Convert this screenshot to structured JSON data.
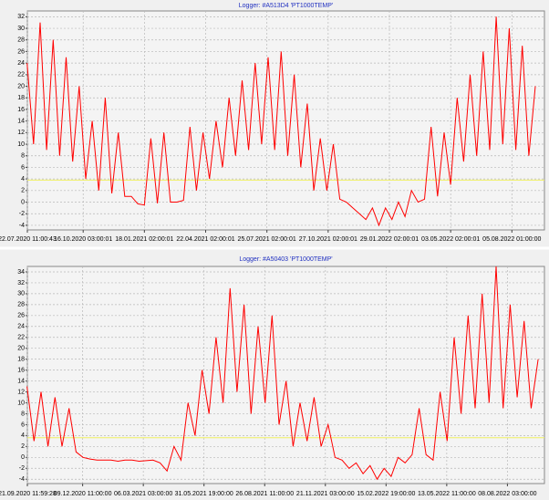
{
  "chart_data": [
    {
      "type": "line",
      "title": "Logger: #A513D4 'PT1000TEMP'",
      "color": "#ff0000",
      "grid": true,
      "threshold": 3.8,
      "threshold_color": "#f0f060",
      "xlim": [
        "22.07.2020 11:00:43",
        "24.09.2022"
      ],
      "xticks": [
        "22.07.2020 11:00:43",
        "16.10.2020 03:00:01",
        "18.01.2021 02:00:01",
        "22.04.2021 02:00:01",
        "25.07.2021 02:00:01",
        "27.10.2021 02:00:01",
        "29.01.2022 02:00:01",
        "03.05.2022 02:00:01",
        "05.08.2022 01:00:00"
      ],
      "ylim": [
        -4.8,
        33
      ],
      "yticks": [
        -4,
        -2,
        0,
        2,
        4,
        6,
        8,
        10,
        12,
        14,
        16,
        18,
        20,
        22,
        24,
        26,
        28,
        30,
        32
      ],
      "x": [
        "22.07.2020",
        "01.08.2020",
        "11.08.2020",
        "21.08.2020",
        "31.08.2020",
        "10.09.2020",
        "20.09.2020",
        "30.09.2020",
        "10.10.2020",
        "20.10.2020",
        "30.10.2020",
        "09.11.2020",
        "19.11.2020",
        "29.11.2020",
        "09.12.2020",
        "19.12.2020",
        "29.12.2020",
        "08.01.2021",
        "18.01.2021",
        "28.01.2021",
        "07.02.2021",
        "17.02.2021",
        "27.02.2021",
        "09.03.2021",
        "19.03.2021",
        "29.03.2021",
        "08.04.2021",
        "18.04.2021",
        "28.04.2021",
        "08.05.2021",
        "18.05.2021",
        "28.05.2021",
        "07.06.2021",
        "17.06.2021",
        "27.06.2021",
        "07.07.2021",
        "17.07.2021",
        "27.07.2021",
        "06.08.2021",
        "16.08.2021",
        "26.08.2021",
        "05.09.2021",
        "15.09.2021",
        "25.09.2021",
        "05.10.2021",
        "15.10.2021",
        "25.10.2021",
        "04.11.2021",
        "14.11.2021",
        "24.11.2021",
        "04.12.2021",
        "14.12.2021",
        "24.12.2021",
        "03.01.2022",
        "13.01.2022",
        "23.01.2022",
        "02.02.2022",
        "12.02.2022",
        "22.02.2022",
        "04.03.2022",
        "14.03.2022",
        "24.03.2022",
        "03.04.2022",
        "13.04.2022",
        "23.04.2022",
        "03.05.2022",
        "13.05.2022",
        "23.05.2022",
        "02.06.2022",
        "12.06.2022",
        "22.06.2022",
        "02.07.2022",
        "12.07.2022",
        "22.07.2022",
        "01.08.2022",
        "11.08.2022",
        "21.08.2022",
        "31.08.2022",
        "10.09.2022"
      ],
      "values": [
        24,
        10,
        31,
        9,
        28,
        8,
        25,
        7,
        20,
        4,
        14,
        2,
        18,
        1.5,
        12,
        1,
        1,
        -0.3,
        -0.5,
        11,
        -0.2,
        12,
        0,
        0,
        0.3,
        13,
        2,
        12,
        4,
        14,
        6,
        18,
        8,
        21,
        9,
        24,
        10,
        25,
        9,
        26,
        8,
        22,
        6,
        17,
        2,
        11,
        2,
        10,
        0.5,
        0,
        -1,
        -2,
        -3,
        -1,
        -4,
        -1,
        -3,
        0,
        -2.5,
        2,
        0,
        0.5,
        13,
        1,
        12,
        3,
        18,
        7,
        22,
        8,
        26,
        9,
        32,
        10,
        30,
        9,
        27,
        8,
        20
      ]
    },
    {
      "type": "line",
      "title": "Logger: #A50403 'PT1000TEMP'",
      "color": "#ff0000",
      "grid": true,
      "threshold": 3.6,
      "threshold_color": "#f0f060",
      "xlim": [
        "21.09.2020 11:59:28",
        "30.09.2022"
      ],
      "xticks": [
        "21.09.2020 11:59:28",
        "09.12.2020 11:00:00",
        "06.03.2021 03:00:00",
        "31.05.2021 19:00:00",
        "26.08.2021 11:00:00",
        "21.11.2021 03:00:00",
        "15.02.2022 19:00:00",
        "13.05.2022 11:00:00",
        "08.08.2022 03:00:00"
      ],
      "ylim": [
        -4.8,
        35
      ],
      "yticks": [
        -4,
        -2,
        0,
        2,
        4,
        6,
        8,
        10,
        12,
        14,
        16,
        18,
        20,
        22,
        24,
        26,
        28,
        30,
        32,
        34
      ],
      "x": [
        "21.09.2020",
        "01.10.2020",
        "11.10.2020",
        "21.10.2020",
        "31.10.2020",
        "10.11.2020",
        "20.11.2020",
        "30.11.2020",
        "10.12.2020",
        "20.12.2020",
        "30.12.2020",
        "09.01.2021",
        "19.01.2021",
        "29.01.2021",
        "08.02.2021",
        "18.02.2021",
        "28.02.2021",
        "10.03.2021",
        "20.03.2021",
        "30.03.2021",
        "09.04.2021",
        "19.04.2021",
        "29.04.2021",
        "09.05.2021",
        "19.05.2021",
        "29.05.2021",
        "08.06.2021",
        "18.06.2021",
        "28.06.2021",
        "08.07.2021",
        "18.07.2021",
        "28.07.2021",
        "07.08.2021",
        "17.08.2021",
        "27.08.2021",
        "06.09.2021",
        "16.09.2021",
        "26.09.2021",
        "06.10.2021",
        "16.10.2021",
        "26.10.2021",
        "05.11.2021",
        "15.11.2021",
        "25.11.2021",
        "05.12.2021",
        "15.12.2021",
        "25.12.2021",
        "04.01.2022",
        "14.01.2022",
        "24.01.2022",
        "03.02.2022",
        "13.02.2022",
        "23.02.2022",
        "05.03.2022",
        "15.03.2022",
        "25.03.2022",
        "04.04.2022",
        "14.04.2022",
        "24.04.2022",
        "04.05.2022",
        "14.05.2022",
        "24.05.2022",
        "03.06.2022",
        "13.06.2022",
        "23.06.2022",
        "03.07.2022",
        "13.07.2022",
        "23.07.2022",
        "02.08.2022",
        "12.08.2022",
        "22.08.2022",
        "01.09.2022",
        "11.09.2022",
        "21.09.2022"
      ],
      "values": [
        13,
        3,
        12,
        2,
        11,
        2,
        9,
        1,
        0,
        -0.3,
        -0.5,
        -0.5,
        -0.5,
        -0.7,
        -0.5,
        -0.5,
        -0.7,
        -0.6,
        -0.5,
        -1,
        -2.5,
        2,
        -0.5,
        10,
        4,
        16,
        8,
        22,
        10,
        31,
        12,
        28,
        8,
        24,
        10,
        26,
        6,
        14,
        2,
        10,
        3,
        11,
        2,
        6,
        0,
        -0.5,
        -2,
        -1,
        -3,
        -1.5,
        -4,
        -2,
        -3.5,
        0,
        -1,
        0.5,
        9,
        0.5,
        -0.5,
        12,
        3,
        22,
        8,
        26,
        9,
        30,
        10,
        35,
        9,
        28,
        11,
        25,
        9,
        18
      ]
    }
  ]
}
